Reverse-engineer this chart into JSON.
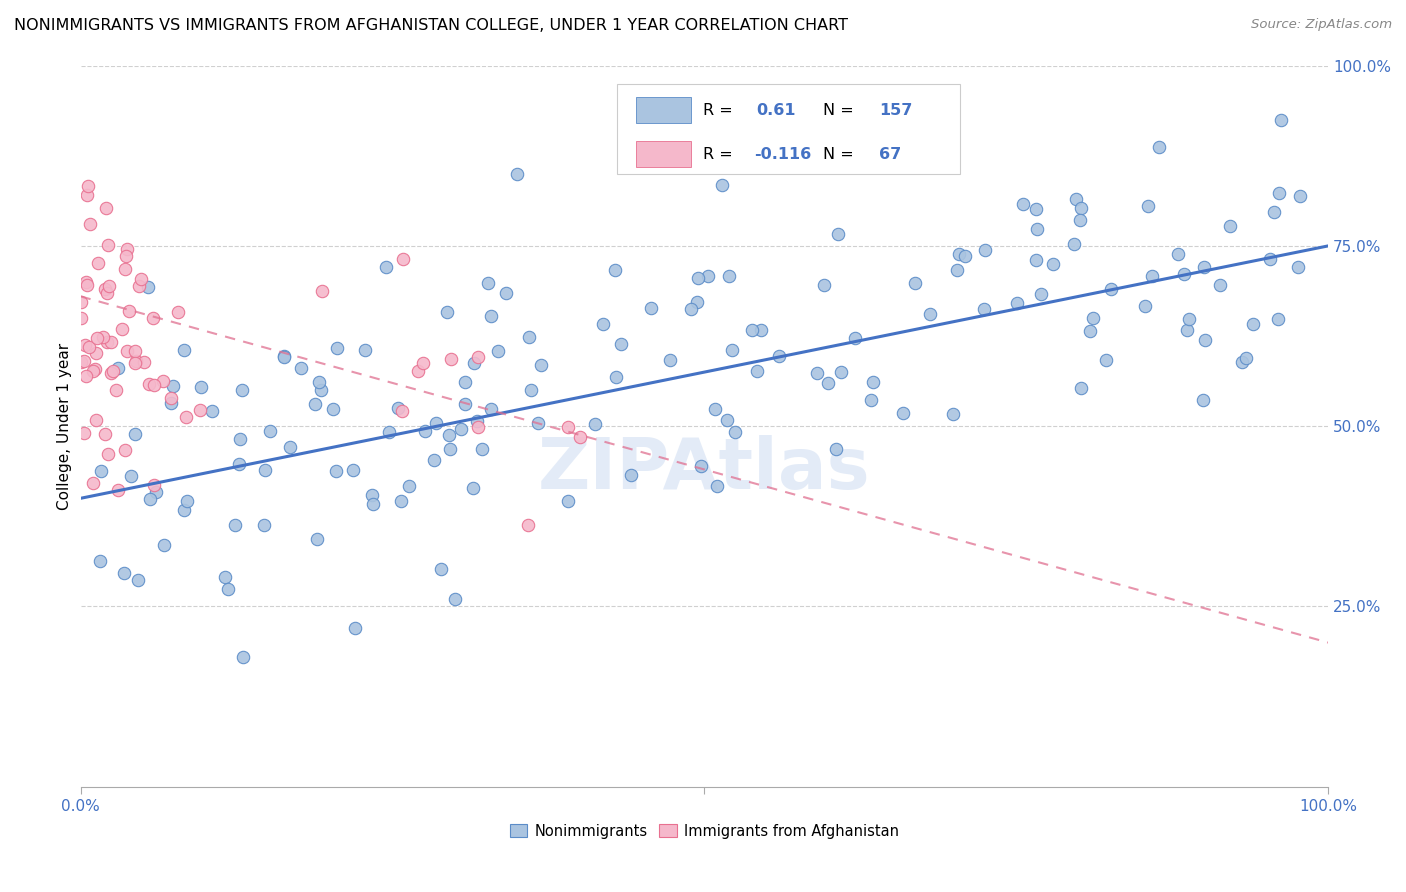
{
  "title": "NONIMMIGRANTS VS IMMIGRANTS FROM AFGHANISTAN COLLEGE, UNDER 1 YEAR CORRELATION CHART",
  "source": "Source: ZipAtlas.com",
  "ylabel": "College, Under 1 year",
  "r_nonimm": 0.61,
  "n_nonimm": 157,
  "r_afg": -0.116,
  "n_afg": 67,
  "nonimm_color": "#aac4e0",
  "nonimm_edge_color": "#5b8cc8",
  "nonimm_line_color": "#4472c4",
  "afg_color": "#f5b8cb",
  "afg_edge_color": "#e87090",
  "afg_line_color": "#e07090",
  "watermark": "ZIPAtlas",
  "watermark_color": "#c8d8f0",
  "tick_color": "#4472c4",
  "grid_color": "#d0d0d0",
  "legend_labels": [
    "Nonimmigrants",
    "Immigrants from Afghanistan"
  ],
  "xlim": [
    0.0,
    1.0
  ],
  "ylim": [
    0.0,
    1.0
  ],
  "right_yticks": [
    0.25,
    0.5,
    0.75,
    1.0
  ],
  "right_yticklabels": [
    "25.0%",
    "50.0%",
    "75.0%",
    "100.0%"
  ],
  "xtick_positions": [
    0.0,
    0.5,
    1.0
  ],
  "xtick_labels": [
    "0.0%",
    "",
    "100.0%"
  ],
  "nonimm_line_x": [
    0.0,
    1.0
  ],
  "nonimm_line_y": [
    0.4,
    0.75
  ],
  "afg_line_x": [
    0.0,
    1.0
  ],
  "afg_line_y": [
    0.68,
    0.2
  ]
}
